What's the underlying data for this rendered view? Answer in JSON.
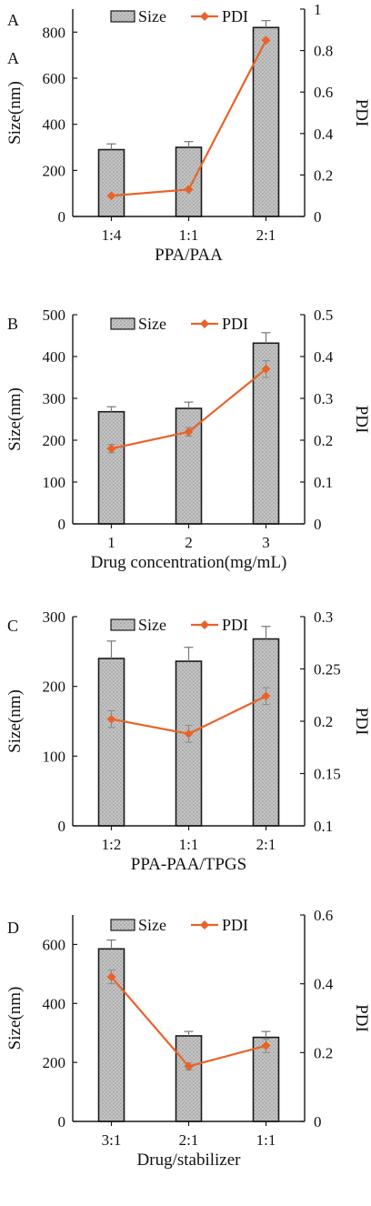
{
  "colors": {
    "bar_fill": "#b5b5b5",
    "bar_stroke": "#1a1a1a",
    "pdi_line": "#e8632a",
    "axis": "#1a1a1a"
  },
  "chart_data": [
    {
      "type": "bar",
      "panel_label": "A",
      "sub_label": "A",
      "categories": [
        "1:4",
        "1:1",
        "2:1"
      ],
      "xlabel": "PPA/PAA",
      "ylabel": "Size(nm)",
      "y2label": "PDI",
      "ylim": [
        0,
        900
      ],
      "yticks": [
        0,
        200,
        400,
        600,
        800
      ],
      "ytick_labels": [
        "0",
        "200",
        "400",
        "600",
        "800"
      ],
      "y2lim": [
        0,
        1
      ],
      "y2ticks": [
        0,
        0.2,
        0.4,
        0.6,
        0.8,
        1
      ],
      "y2tick_labels": [
        "0",
        "0.2",
        "0.4",
        "0.6",
        "0.8",
        "1"
      ],
      "legend": [
        "Size",
        "PDI"
      ],
      "series": [
        {
          "name": "Size",
          "axis": "left",
          "kind": "bar",
          "values": [
            290,
            300,
            820
          ],
          "errors": [
            25,
            25,
            30
          ]
        },
        {
          "name": "PDI",
          "axis": "right",
          "kind": "line",
          "values": [
            0.1,
            0.13,
            0.85
          ],
          "errors": [
            0,
            0,
            0
          ]
        }
      ]
    },
    {
      "type": "bar",
      "panel_label": "B",
      "categories": [
        "1",
        "2",
        "3"
      ],
      "xlabel": "Drug concentration(mg/mL)",
      "ylabel": "Size(nm)",
      "y2label": "PDI",
      "ylim": [
        0,
        500
      ],
      "yticks": [
        0,
        100,
        200,
        300,
        400,
        500
      ],
      "ytick_labels": [
        "0",
        "100",
        "200",
        "300",
        "400",
        "500"
      ],
      "y2lim": [
        0,
        0.5
      ],
      "y2ticks": [
        0,
        0.1,
        0.2,
        0.3,
        0.4,
        0.5
      ],
      "y2tick_labels": [
        "0",
        "0.1",
        "0.2",
        "0.3",
        "0.4",
        "0.5"
      ],
      "legend": [
        "Size",
        "PDI"
      ],
      "series": [
        {
          "name": "Size",
          "axis": "left",
          "kind": "bar",
          "values": [
            268,
            276,
            432
          ],
          "errors": [
            12,
            15,
            25
          ]
        },
        {
          "name": "PDI",
          "axis": "right",
          "kind": "line",
          "values": [
            0.18,
            0.22,
            0.37
          ],
          "errors": [
            0.01,
            0.01,
            0.02
          ]
        }
      ]
    },
    {
      "type": "bar",
      "panel_label": "C",
      "categories": [
        "1:2",
        "1:1",
        "2:1"
      ],
      "xlabel": "PPA-PAA/TPGS",
      "ylabel": "Size(nm)",
      "y2label": "PDI",
      "ylim": [
        0,
        300
      ],
      "yticks": [
        0,
        100,
        200,
        300
      ],
      "ytick_labels": [
        "0",
        "100",
        "200",
        "300"
      ],
      "y2lim": [
        0.1,
        0.3
      ],
      "y2ticks": [
        0.1,
        0.15,
        0.2,
        0.25,
        0.3
      ],
      "y2tick_labels": [
        "0.1",
        "0.15",
        "0.2",
        "0.25",
        "0.3"
      ],
      "legend": [
        "Size",
        "PDI"
      ],
      "series": [
        {
          "name": "Size",
          "axis": "left",
          "kind": "bar",
          "values": [
            240,
            236,
            268
          ],
          "errors": [
            25,
            20,
            18
          ]
        },
        {
          "name": "PDI",
          "axis": "right",
          "kind": "line",
          "values": [
            0.202,
            0.188,
            0.224
          ],
          "errors": [
            0.008,
            0.008,
            0.008
          ]
        }
      ]
    },
    {
      "type": "bar",
      "panel_label": "D",
      "categories": [
        "3:1",
        "2:1",
        "1:1"
      ],
      "xlabel": "Drug/stabilizer",
      "ylabel": "Size(nm)",
      "y2label": "PDI",
      "ylim": [
        0,
        700
      ],
      "yticks": [
        0,
        200,
        400,
        600
      ],
      "ytick_labels": [
        "0",
        "200",
        "400",
        "600"
      ],
      "y2lim": [
        0,
        0.6
      ],
      "y2ticks": [
        0,
        0.2,
        0.4,
        0.6
      ],
      "y2tick_labels": [
        "0",
        "0.2",
        "0.4",
        "0.6"
      ],
      "legend": [
        "Size",
        "PDI"
      ],
      "series": [
        {
          "name": "Size",
          "axis": "left",
          "kind": "bar",
          "values": [
            585,
            290,
            285
          ],
          "errors": [
            30,
            15,
            20
          ]
        },
        {
          "name": "PDI",
          "axis": "right",
          "kind": "line",
          "values": [
            0.42,
            0.16,
            0.22
          ],
          "errors": [
            0.02,
            0.01,
            0.02
          ]
        }
      ]
    }
  ]
}
